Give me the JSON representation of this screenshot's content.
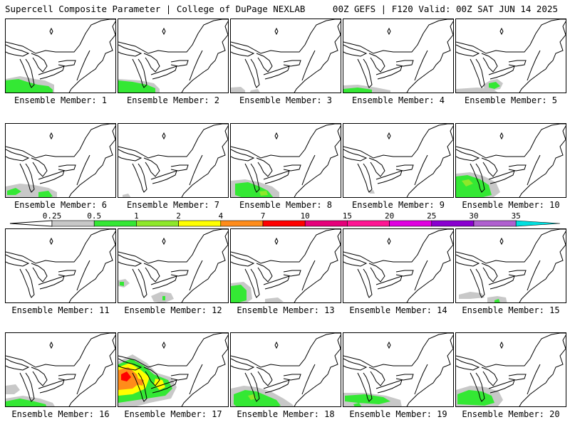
{
  "header": {
    "title_left": "Supercell Composite Parameter | College of DuPage NEXLAB",
    "title_right": "00Z GEFS | F120 Valid: 00Z SAT JUN 14 2025"
  },
  "colorbar": {
    "ticks": [
      "0.25",
      "0.5",
      "1",
      "2",
      "4",
      "7",
      "10",
      "15",
      "20",
      "25",
      "30",
      "35"
    ],
    "colors": [
      "#c8c8c8",
      "#34e834",
      "#8ee82a",
      "#ffff00",
      "#ff8c1a",
      "#ff0000",
      "#e6007a",
      "#ff1493",
      "#e000e0",
      "#8a00d0",
      "#b060d0",
      "#00e0e0"
    ]
  },
  "panels": [
    {
      "label": "Ensemble Member: 1"
    },
    {
      "label": "Ensemble Member: 2"
    },
    {
      "label": "Ensemble Member: 3"
    },
    {
      "label": "Ensemble Member: 4"
    },
    {
      "label": "Ensemble Member: 5"
    },
    {
      "label": "Ensemble Member: 6"
    },
    {
      "label": "Ensemble Member: 7"
    },
    {
      "label": "Ensemble Member: 8"
    },
    {
      "label": "Ensemble Member: 9"
    },
    {
      "label": "Ensemble Member: 10"
    },
    {
      "label": "Ensemble Member: 11"
    },
    {
      "label": "Ensemble Member: 12"
    },
    {
      "label": "Ensemble Member: 13"
    },
    {
      "label": "Ensemble Member: 14"
    },
    {
      "label": "Ensemble Member: 15"
    },
    {
      "label": "Ensemble Member: 16"
    },
    {
      "label": "Ensemble Member: 17"
    },
    {
      "label": "Ensemble Member: 18"
    },
    {
      "label": "Ensemble Member: 19"
    },
    {
      "label": "Ensemble Member: 20"
    }
  ]
}
